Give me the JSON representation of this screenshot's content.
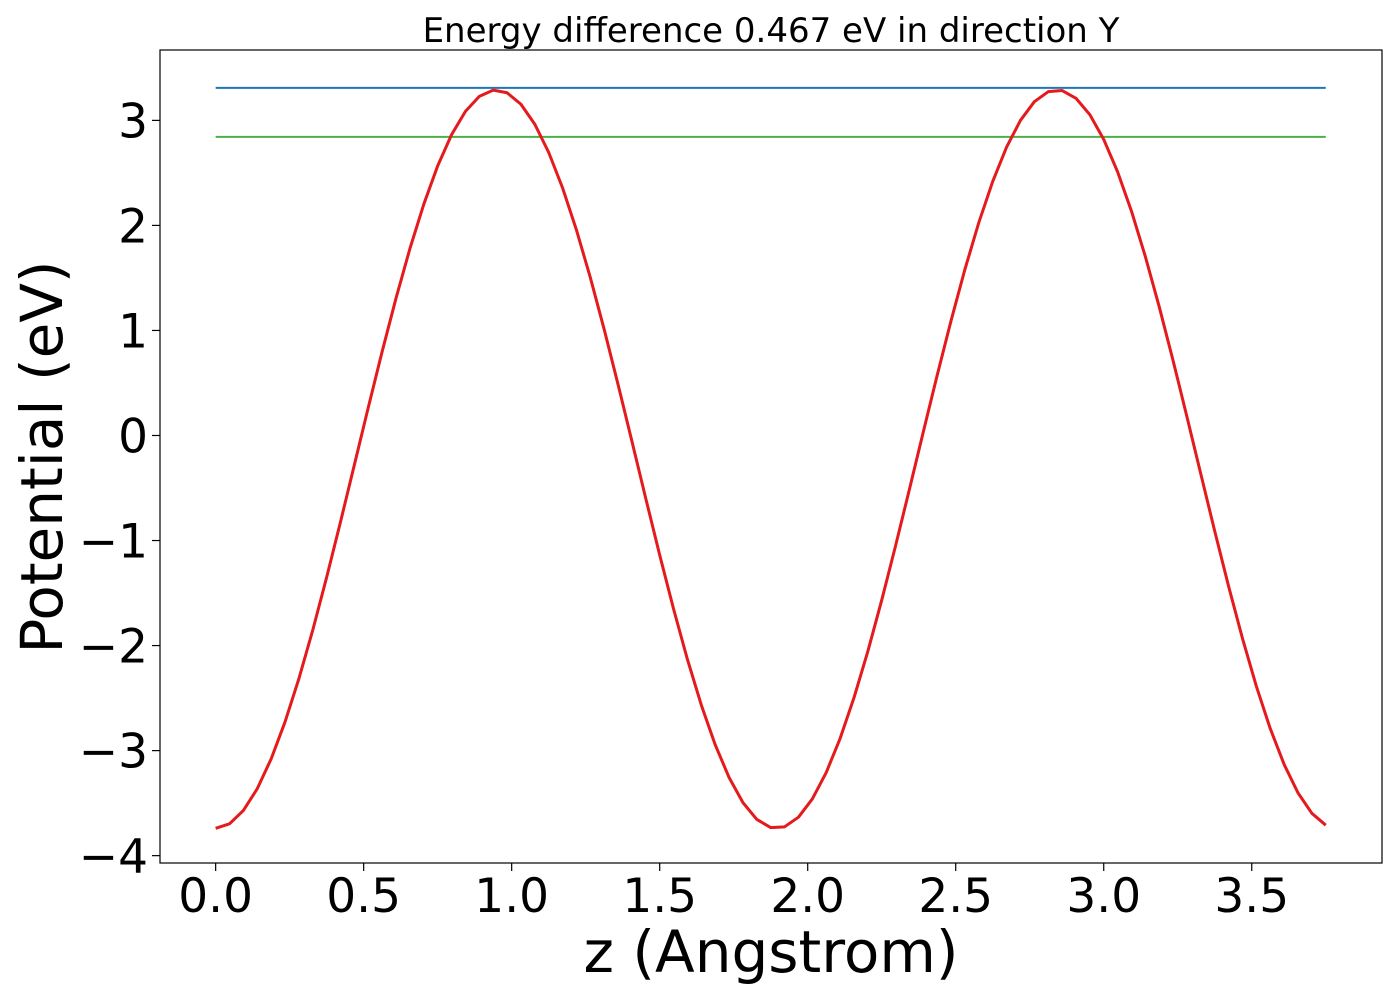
{
  "chart_data": {
    "type": "line",
    "title": "Energy difference 0.467 eV in direction Y",
    "xlabel": "z (Angstrom)",
    "ylabel": "Potential (eV)",
    "xlim": [
      -0.188,
      3.94
    ],
    "ylim": [
      -4.07,
      3.67
    ],
    "xticks": [
      0.0,
      0.5,
      1.0,
      1.5,
      2.0,
      2.5,
      3.0,
      3.5
    ],
    "xtick_labels": [
      "0.0",
      "0.5",
      "1.0",
      "1.5",
      "2.0",
      "2.5",
      "3.0",
      "3.5"
    ],
    "yticks": [
      -4,
      -3,
      -2,
      -1,
      0,
      1,
      2,
      3
    ],
    "ytick_labels": [
      "−4",
      "−3",
      "−2",
      "−1",
      "0",
      "1",
      "2",
      "3"
    ],
    "grid": false,
    "legend": "none",
    "potential": {
      "color": "#e41a1c",
      "x_start": 0.0,
      "x_end": 3.75,
      "n_points": 81,
      "min": -3.74,
      "max": 3.29,
      "period": 1.895,
      "peak_x": 0.947
    },
    "series": [
      {
        "color": "#1f77b4",
        "x": [
          0.0,
          3.75
        ],
        "y": [
          3.31,
          3.31
        ]
      },
      {
        "color": "#4daf4a",
        "x": [
          0.0,
          3.75
        ],
        "y": [
          2.843,
          2.843
        ]
      }
    ]
  }
}
